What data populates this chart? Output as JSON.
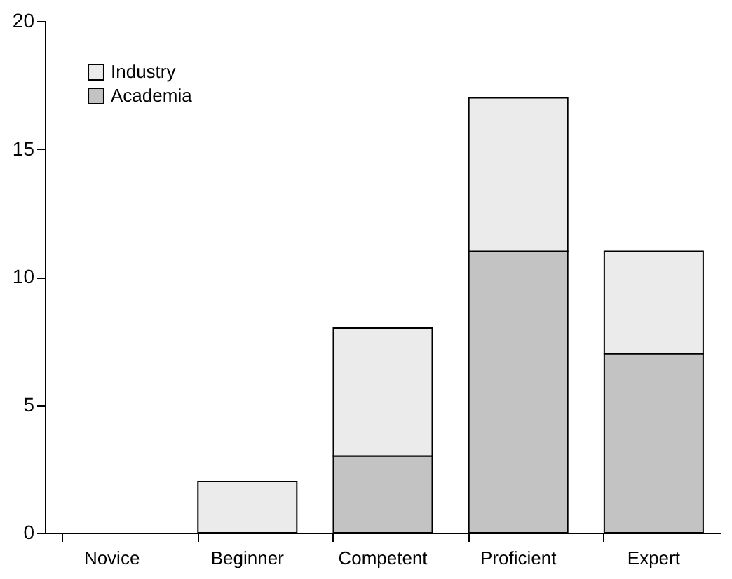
{
  "chart_data": {
    "type": "bar",
    "stacked": true,
    "categories": [
      "Novice",
      "Beginner",
      "Competent",
      "Proficient",
      "Expert"
    ],
    "series": [
      {
        "name": "Academia",
        "color": "#c3c3c3",
        "values": [
          0,
          0,
          3,
          11,
          7
        ]
      },
      {
        "name": "Industry",
        "color": "#ebebeb",
        "values": [
          0,
          2,
          5,
          6,
          4
        ]
      }
    ],
    "ylim": [
      0,
      20
    ],
    "yticks": [
      0,
      5,
      10,
      15,
      20
    ],
    "grid": false,
    "legend": "top left"
  }
}
